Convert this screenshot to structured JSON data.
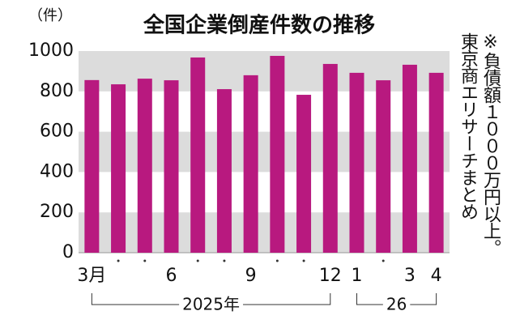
{
  "chart_data": {
    "type": "bar",
    "title": "全国企業倒産件数の推移",
    "y_unit": "（件）",
    "categories": [
      "3月",
      null,
      null,
      "6",
      null,
      null,
      "9",
      null,
      null,
      "12",
      "1",
      null,
      "3",
      "4"
    ],
    "values": [
      856,
      835,
      863,
      855,
      968,
      811,
      880,
      976,
      783,
      936,
      892,
      855,
      932,
      892
    ],
    "color": "#b8197f",
    "ylim": [
      0,
      1000
    ],
    "yticks": [
      1000,
      800,
      600,
      400,
      200,
      0
    ],
    "year_labels": [
      "2025年",
      "26"
    ],
    "note": [
      "※負債額１０００万円以上。",
      "東京商エリサーチまとめ"
    ]
  }
}
